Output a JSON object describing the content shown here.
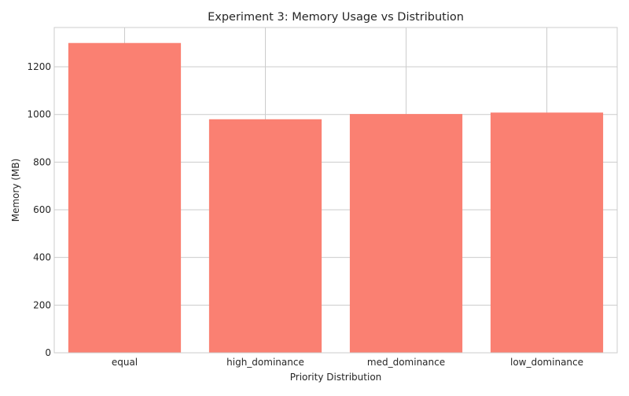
{
  "chart_data": {
    "type": "bar",
    "title": "Experiment 3: Memory Usage vs Distribution",
    "xlabel": "Priority Distribution",
    "ylabel": "Memory (MB)",
    "categories": [
      "equal",
      "high_dominance",
      "med_dominance",
      "low_dominance"
    ],
    "values": [
      1300,
      980,
      1002,
      1008
    ],
    "ylim": [
      0,
      1365
    ],
    "yticks": [
      0,
      200,
      400,
      600,
      800,
      1000,
      1200
    ],
    "grid": true,
    "bar_color": "#fa8072",
    "grid_color": "#cccccc",
    "axis_color": "#cccccc"
  }
}
